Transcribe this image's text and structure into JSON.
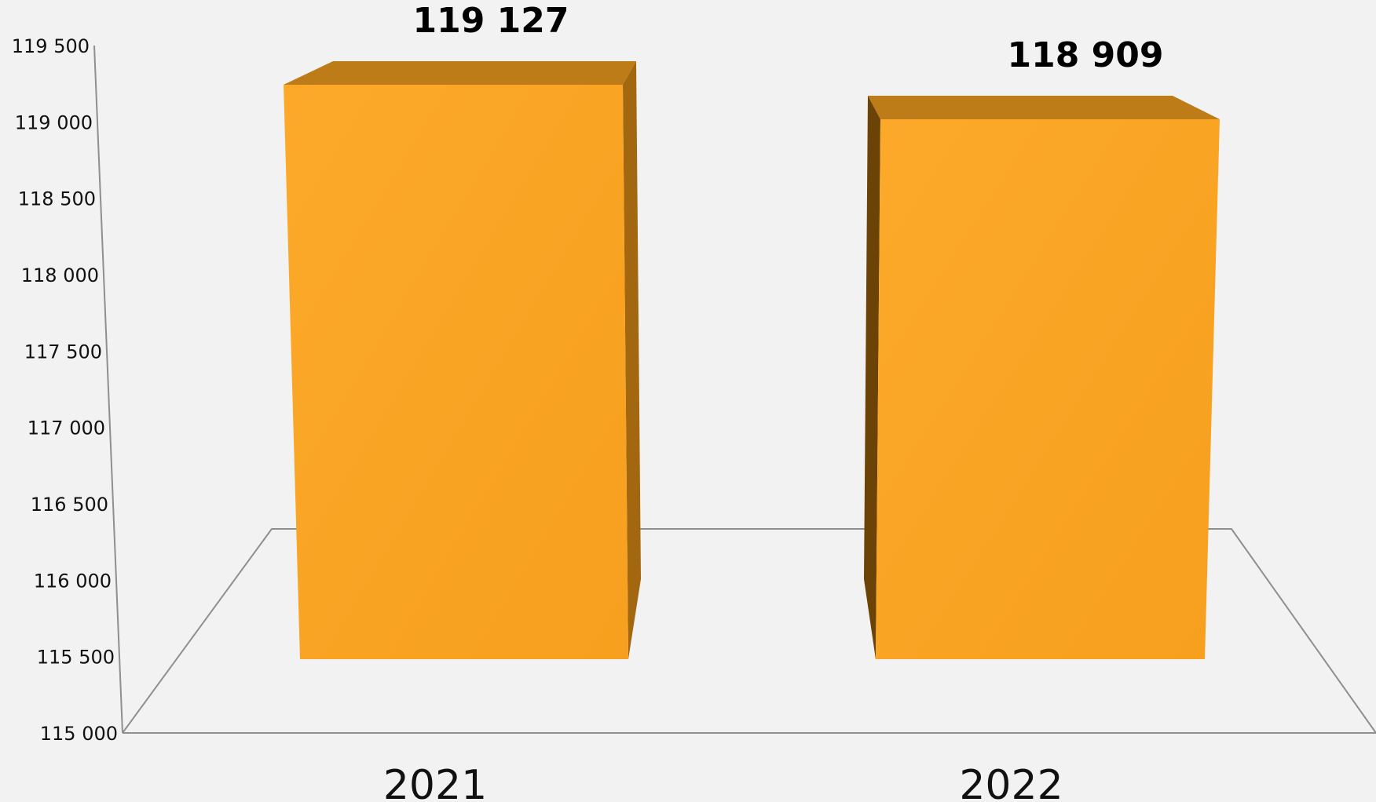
{
  "chart_data": {
    "type": "bar",
    "categories": [
      "2021",
      "2022"
    ],
    "values": [
      119127,
      118909
    ],
    "data_labels": [
      "119 127",
      "118 909"
    ],
    "ylim": [
      115000,
      119500
    ],
    "yticks": [
      115000,
      115500,
      116000,
      116500,
      117000,
      117500,
      118000,
      118500,
      119000,
      119500
    ],
    "ytick_labels": [
      "115 000",
      "115 500",
      "116 000",
      "116 500",
      "117 000",
      "117 500",
      "118 000",
      "118 500",
      "119 000",
      "119 500"
    ],
    "title": "",
    "xlabel": "",
    "ylabel": "",
    "grid": false,
    "legend": "none",
    "style": "3d-bar",
    "colors": {
      "bar_front": "#f9a11f",
      "bar_front_light": "#fca92a",
      "bar_top": "#bd7c17",
      "bar_side": "#a36710",
      "bar_side_dark": "#6b4307",
      "axis": "#8f8f8f",
      "background": "#f2f2f2",
      "text": "#111111"
    }
  }
}
